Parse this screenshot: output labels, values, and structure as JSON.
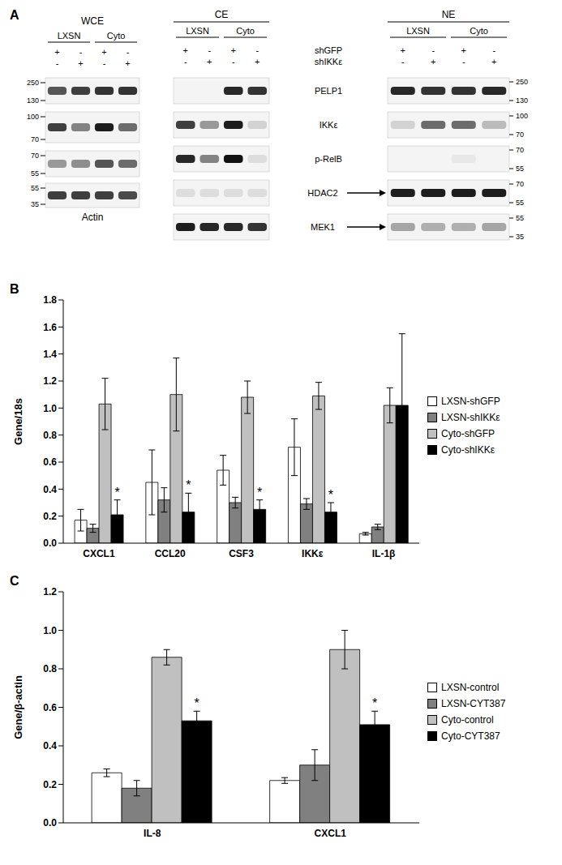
{
  "blot": {
    "panel_label": "A",
    "whole_cell": {
      "title": "WCE",
      "groups": [
        "LXSN",
        "Cyto"
      ],
      "signs": [
        [
          "+",
          "-",
          "+",
          "-"
        ],
        [
          "-",
          "+",
          "-",
          "+"
        ]
      ],
      "rows": [
        {
          "markers": [
            250,
            130
          ],
          "band_intensity": [
            0.7,
            0.8,
            0.85,
            0.85
          ]
        },
        {
          "markers": [
            100,
            70
          ],
          "band_intensity": [
            0.8,
            0.5,
            0.95,
            0.6
          ]
        },
        {
          "markers": [
            70,
            55
          ],
          "band_intensity": [
            0.4,
            0.45,
            0.7,
            0.6
          ]
        },
        {
          "markers": [
            55,
            35
          ],
          "band_intensity": [
            0.8,
            0.8,
            0.8,
            0.75
          ]
        }
      ],
      "footer": "Actin"
    },
    "fractions": {
      "sections": [
        {
          "title": "CE",
          "groups": [
            "LXSN",
            "Cyto"
          ]
        },
        {
          "title": "NE",
          "groups": [
            "LXSN",
            "Cyto"
          ]
        }
      ],
      "treatments": [
        {
          "name": "shGFP",
          "signs": [
            "+",
            "-",
            "+",
            "-",
            "+",
            "-",
            "+",
            "-"
          ]
        },
        {
          "name": "shIKKε",
          "signs": [
            "-",
            "+",
            "-",
            "+",
            "-",
            "+",
            "-",
            "+"
          ]
        }
      ],
      "rows": [
        {
          "label": "PELP1",
          "arrow": false,
          "markers": [
            250,
            130
          ],
          "band_intensity": [
            0,
            0,
            0.9,
            0.85,
            0.9,
            0.85,
            0.85,
            0.9
          ]
        },
        {
          "label": "IKKε",
          "arrow": false,
          "markers": [
            100,
            70
          ],
          "band_intensity": [
            0.8,
            0.4,
            0.95,
            0.15,
            0.15,
            0.6,
            0.6,
            0.25
          ]
        },
        {
          "label": "p-RelB",
          "arrow": false,
          "markers": [
            70,
            55
          ],
          "band_intensity": [
            0.9,
            0.5,
            1.0,
            0.1,
            0,
            0,
            0.05,
            0
          ]
        },
        {
          "label": "HDAC2",
          "arrow": true,
          "markers": [
            70,
            55
          ],
          "band_intensity": [
            0.1,
            0.1,
            0.1,
            0.1,
            0.95,
            0.95,
            0.95,
            0.95
          ]
        },
        {
          "label": "MEK1",
          "arrow": true,
          "markers": [
            55,
            35
          ],
          "band_intensity": [
            0.95,
            0.9,
            0.9,
            0.85,
            0.35,
            0.3,
            0.3,
            0.35
          ]
        }
      ]
    }
  },
  "chart_data": [
    {
      "type": "bar",
      "panel_label": "B",
      "y_label": "Gene/18s",
      "categories": [
        "CXCL1",
        "CCL20",
        "CSF3",
        "IKKε",
        "IL-1β"
      ],
      "ylim": [
        0,
        1.8
      ],
      "yticks": [
        {
          "value": 0,
          "label": "0.0"
        },
        0.2,
        0.4,
        0.6,
        0.8,
        {
          "value": 1,
          "label": "1.0"
        },
        1.2,
        1.4,
        1.6,
        1.8
      ],
      "grid": false,
      "legend": "right",
      "series": [
        {
          "name": "LXSN-shGFP",
          "color": "#ffffff",
          "values": [
            0.17,
            0.45,
            0.54,
            0.71,
            0.07
          ],
          "errors": [
            0.08,
            0.24,
            0.11,
            0.21,
            0.01
          ]
        },
        {
          "name": "LXSN-shIKKε",
          "color": "#808080",
          "values": [
            0.11,
            0.32,
            0.3,
            0.29,
            0.12
          ],
          "errors": [
            0.03,
            0.09,
            0.04,
            0.04,
            0.02
          ]
        },
        {
          "name": "Cyto-shGFP",
          "color": "#c0c0c0",
          "values": [
            1.03,
            1.1,
            1.08,
            1.09,
            1.02
          ],
          "errors": [
            0.19,
            0.27,
            0.12,
            0.1,
            0.13
          ]
        },
        {
          "name": "Cyto-shIKKε",
          "color": "#000000",
          "values": [
            0.21,
            0.23,
            0.25,
            0.23,
            1.02
          ],
          "errors": [
            0.11,
            0.14,
            0.07,
            0.07,
            0.53
          ],
          "significance": [
            "*",
            "*",
            "*",
            "*",
            null
          ]
        }
      ]
    },
    {
      "type": "bar",
      "panel_label": "C",
      "y_label": "Gene/β-actin",
      "categories": [
        "IL-8",
        "CXCL1"
      ],
      "ylim": [
        0,
        1.2
      ],
      "yticks": [
        {
          "value": 0,
          "label": "0.0"
        },
        0.2,
        0.4,
        0.6,
        0.8,
        {
          "value": 1,
          "label": "1.0"
        },
        1.2
      ],
      "grid": false,
      "legend": "right",
      "series": [
        {
          "name": "LXSN-control",
          "color": "#ffffff",
          "values": [
            0.26,
            0.22
          ],
          "errors": [
            0.02,
            0.015
          ]
        },
        {
          "name": "LXSN-CYT387",
          "color": "#808080",
          "values": [
            0.18,
            0.3
          ],
          "errors": [
            0.04,
            0.08
          ]
        },
        {
          "name": "Cyto-control",
          "color": "#c0c0c0",
          "values": [
            0.86,
            0.9
          ],
          "errors": [
            0.04,
            0.1
          ]
        },
        {
          "name": "Cyto-CYT387",
          "color": "#000000",
          "values": [
            0.53,
            0.51
          ],
          "errors": [
            0.05,
            0.07
          ],
          "significance": [
            "*",
            "*"
          ]
        }
      ]
    }
  ]
}
